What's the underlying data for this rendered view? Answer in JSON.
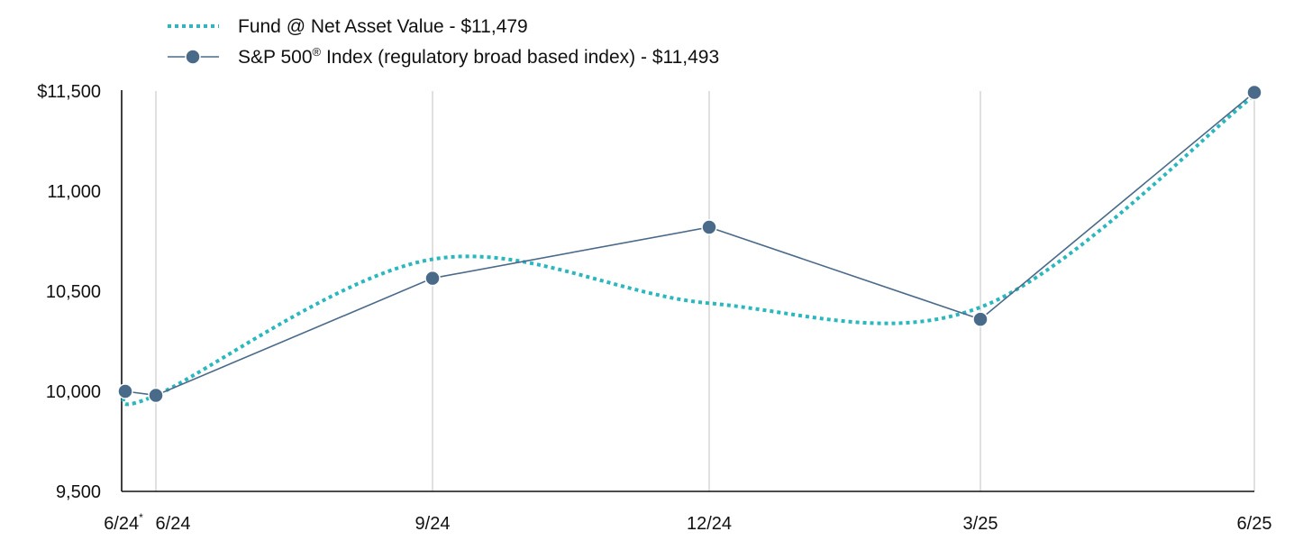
{
  "chart_data": {
    "type": "line",
    "x_labels": [
      "6/24",
      "6/24",
      "9/24",
      "12/24",
      "3/25",
      "6/25"
    ],
    "first_label_marker": "*",
    "y_ticks": [
      "$11,500",
      "11,000",
      "10,500",
      "10,000",
      "9,500"
    ],
    "ylim": [
      9500,
      11500
    ],
    "grid": "vertical",
    "legend_position": "top-left",
    "series": [
      {
        "name": "Fund @ Net Asset Value - $11,479",
        "style": "dotted-smooth",
        "color": "#2ab7bd",
        "values": [
          10000,
          9980,
          10660,
          10440,
          10420,
          11479
        ]
      },
      {
        "name_prefix": "S&P 500",
        "name_sup": "®",
        "name_suffix": " Index (regulatory broad based index) - $11,493",
        "style": "solid-markers",
        "color": "#4a6a8a",
        "values": [
          10000,
          9980,
          10565,
          10820,
          10360,
          11493
        ]
      }
    ]
  }
}
